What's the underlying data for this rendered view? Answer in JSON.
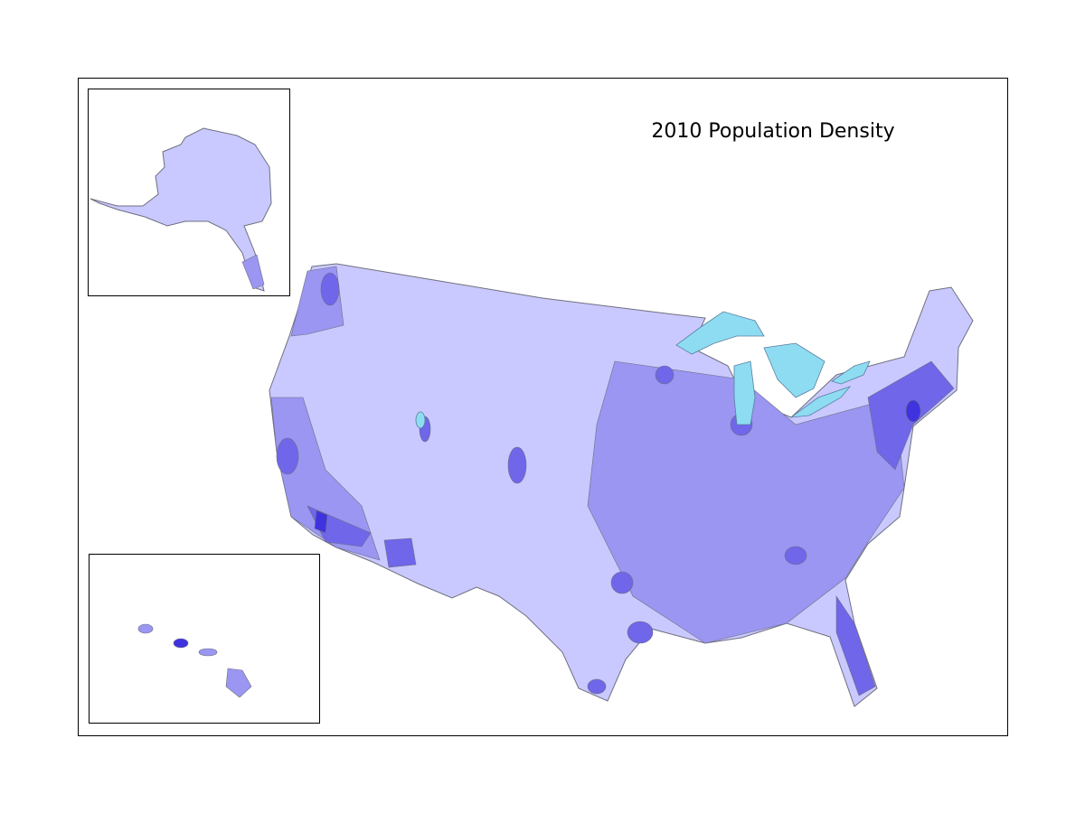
{
  "title": "2010 Population Density"
}
